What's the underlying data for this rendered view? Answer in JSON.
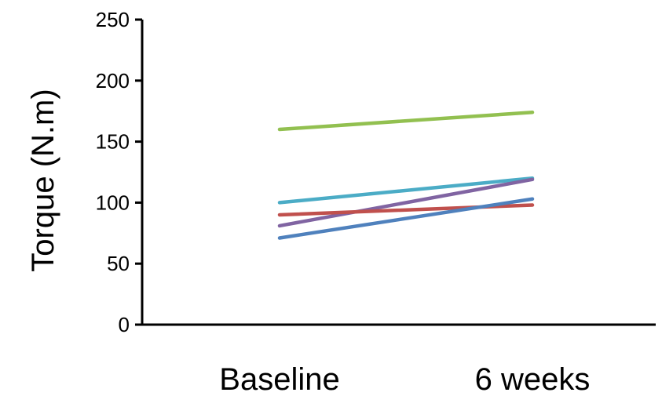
{
  "chart_data": {
    "type": "line",
    "title": "",
    "xlabel": "",
    "ylabel": "Torque (N.m)",
    "categories": [
      "Baseline",
      "6 weeks"
    ],
    "ylim": [
      0,
      250
    ],
    "yticks": [
      0,
      50,
      100,
      150,
      200,
      250
    ],
    "grid": false,
    "legend": "none",
    "series": [
      {
        "values": [
          160,
          174
        ],
        "color": "#92c050"
      },
      {
        "values": [
          100,
          120
        ],
        "color": "#4bacc6"
      },
      {
        "values": [
          81,
          119
        ],
        "color": "#8064a2"
      },
      {
        "values": [
          90,
          98
        ],
        "color": "#c0504d"
      },
      {
        "values": [
          71,
          103
        ],
        "color": "#4f81bd"
      }
    ]
  }
}
